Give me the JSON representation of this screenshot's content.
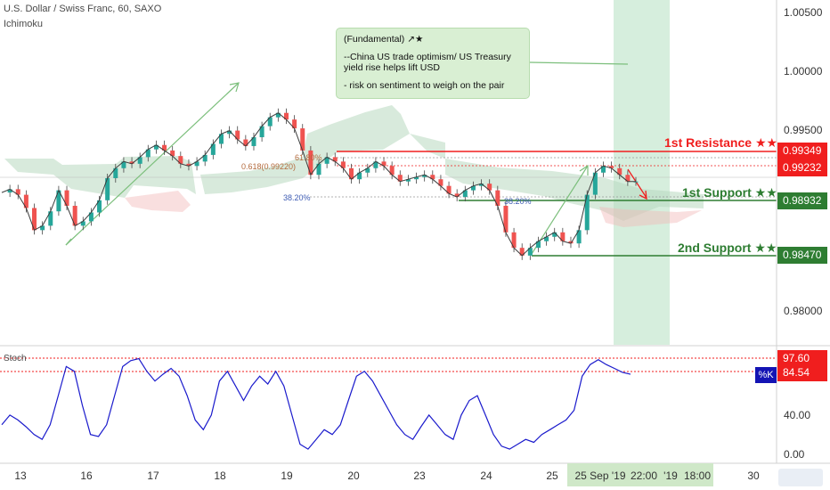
{
  "header": {
    "symbol_line": "U.S. Dollar / Swiss Franc, 60, SAXO",
    "indicator": "Ichimoku"
  },
  "annotation": {
    "title": "(Fundamental) ↗★",
    "line1": "--China US trade optimism/ US Treasury",
    "line2": "yield rise helps lift USD",
    "line3": "- risk on sentiment to weigh on the pair"
  },
  "levels": {
    "resistance": {
      "label": "1st Resistance ★★",
      "value": "0.99349",
      "color": "#f01e1e"
    },
    "current": {
      "value": "0.99232",
      "color": "#f01e1e"
    },
    "support1": {
      "label": "1st Support ★★",
      "value": "0.98932",
      "color": "#2e7d32"
    },
    "support2": {
      "label": "2nd Support ★★",
      "value": "0.98470",
      "color": "#2e7d32"
    }
  },
  "fib": {
    "f618": "61.80%",
    "f618b": "0.618(0.99220)",
    "f382": "38.20%",
    "f382b": "38.20%"
  },
  "oscillator": {
    "name": "Stoch",
    "k_label": "%K",
    "upper_value": "97.60",
    "lower_value": "84.54",
    "ticks": [
      "40.00",
      "0.00"
    ]
  },
  "chart_data": {
    "type": "line",
    "price_axis": {
      "ticks": [
        "1.00500",
        "1.00000",
        "0.99500",
        "0.98000"
      ],
      "ylim": [
        0.977,
        1.0068
      ]
    },
    "x_ticks": [
      "13",
      "16",
      "17",
      "18",
      "19",
      "20",
      "23",
      "24",
      "25",
      "25 Sep '19",
      "22:00",
      "'19",
      "18:00",
      "30"
    ],
    "candle_colors": {
      "up": "#26a69a",
      "down": "#ef5350"
    },
    "path_points": [
      [
        0,
        0.9902
      ],
      [
        2,
        0.9905
      ],
      [
        4,
        0.99
      ],
      [
        6,
        0.9888
      ],
      [
        8,
        0.9868
      ],
      [
        10,
        0.9872
      ],
      [
        12,
        0.9885
      ],
      [
        14,
        0.9904
      ],
      [
        16,
        0.989
      ],
      [
        18,
        0.9872
      ],
      [
        20,
        0.9876
      ],
      [
        22,
        0.9884
      ],
      [
        24,
        0.9895
      ],
      [
        26,
        0.9915
      ],
      [
        28,
        0.9924
      ],
      [
        30,
        0.993
      ],
      [
        32,
        0.9928
      ],
      [
        34,
        0.9934
      ],
      [
        36,
        0.9941
      ],
      [
        38,
        0.9945
      ],
      [
        40,
        0.994
      ],
      [
        42,
        0.9935
      ],
      [
        44,
        0.9928
      ],
      [
        46,
        0.9926
      ],
      [
        48,
        0.993
      ],
      [
        50,
        0.9936
      ],
      [
        52,
        0.9946
      ],
      [
        54,
        0.9955
      ],
      [
        56,
        0.9958
      ],
      [
        58,
        0.995
      ],
      [
        60,
        0.9944
      ],
      [
        62,
        0.9952
      ],
      [
        64,
        0.9962
      ],
      [
        66,
        0.997
      ],
      [
        68,
        0.9974
      ],
      [
        70,
        0.9968
      ],
      [
        72,
        0.996
      ],
      [
        74,
        0.994
      ],
      [
        76,
        0.9918
      ],
      [
        78,
        0.9928
      ],
      [
        80,
        0.9934
      ],
      [
        82,
        0.993
      ],
      [
        84,
        0.9924
      ],
      [
        86,
        0.9914
      ],
      [
        88,
        0.992
      ],
      [
        90,
        0.9924
      ],
      [
        92,
        0.993
      ],
      [
        94,
        0.9926
      ],
      [
        96,
        0.9918
      ],
      [
        98,
        0.9912
      ],
      [
        100,
        0.9914
      ],
      [
        102,
        0.9916
      ],
      [
        104,
        0.9918
      ],
      [
        106,
        0.9914
      ],
      [
        108,
        0.9908
      ],
      [
        110,
        0.9901
      ],
      [
        112,
        0.9898
      ],
      [
        114,
        0.9904
      ],
      [
        116,
        0.9908
      ],
      [
        118,
        0.991
      ],
      [
        120,
        0.9904
      ],
      [
        122,
        0.989
      ],
      [
        124,
        0.9866
      ],
      [
        126,
        0.9852
      ],
      [
        128,
        0.9845
      ],
      [
        130,
        0.9852
      ],
      [
        132,
        0.9858
      ],
      [
        134,
        0.9862
      ],
      [
        136,
        0.9866
      ],
      [
        138,
        0.9858
      ],
      [
        140,
        0.9856
      ],
      [
        142,
        0.9868
      ],
      [
        144,
        0.99
      ],
      [
        146,
        0.992
      ],
      [
        148,
        0.9926
      ],
      [
        150,
        0.9924
      ],
      [
        152,
        0.9918
      ],
      [
        154,
        0.9912
      ],
      [
        156,
        0.9912
      ]
    ],
    "stoch_k": [
      [
        0,
        30
      ],
      [
        2,
        40
      ],
      [
        4,
        35
      ],
      [
        6,
        28
      ],
      [
        8,
        20
      ],
      [
        10,
        15
      ],
      [
        12,
        30
      ],
      [
        14,
        60
      ],
      [
        16,
        90
      ],
      [
        18,
        85
      ],
      [
        20,
        50
      ],
      [
        22,
        20
      ],
      [
        24,
        18
      ],
      [
        26,
        30
      ],
      [
        28,
        60
      ],
      [
        30,
        90
      ],
      [
        32,
        96
      ],
      [
        34,
        98
      ],
      [
        36,
        85
      ],
      [
        38,
        75
      ],
      [
        40,
        82
      ],
      [
        42,
        88
      ],
      [
        44,
        80
      ],
      [
        46,
        60
      ],
      [
        48,
        35
      ],
      [
        50,
        25
      ],
      [
        52,
        40
      ],
      [
        54,
        75
      ],
      [
        56,
        85
      ],
      [
        58,
        70
      ],
      [
        60,
        55
      ],
      [
        62,
        70
      ],
      [
        64,
        80
      ],
      [
        66,
        72
      ],
      [
        68,
        85
      ],
      [
        70,
        70
      ],
      [
        72,
        40
      ],
      [
        74,
        10
      ],
      [
        76,
        5
      ],
      [
        78,
        15
      ],
      [
        80,
        25
      ],
      [
        82,
        20
      ],
      [
        84,
        30
      ],
      [
        86,
        55
      ],
      [
        88,
        80
      ],
      [
        90,
        85
      ],
      [
        92,
        75
      ],
      [
        94,
        60
      ],
      [
        96,
        45
      ],
      [
        98,
        30
      ],
      [
        100,
        20
      ],
      [
        102,
        15
      ],
      [
        104,
        28
      ],
      [
        106,
        40
      ],
      [
        108,
        30
      ],
      [
        110,
        20
      ],
      [
        112,
        15
      ],
      [
        114,
        40
      ],
      [
        116,
        55
      ],
      [
        118,
        60
      ],
      [
        120,
        40
      ],
      [
        122,
        20
      ],
      [
        124,
        8
      ],
      [
        126,
        5
      ],
      [
        128,
        10
      ],
      [
        130,
        15
      ],
      [
        132,
        12
      ],
      [
        134,
        20
      ],
      [
        136,
        25
      ],
      [
        138,
        30
      ],
      [
        140,
        35
      ],
      [
        142,
        45
      ],
      [
        144,
        80
      ],
      [
        146,
        92
      ],
      [
        148,
        97
      ],
      [
        150,
        92
      ],
      [
        152,
        88
      ],
      [
        154,
        84
      ],
      [
        156,
        82
      ]
    ],
    "stoch_lim": [
      -5,
      105
    ]
  }
}
